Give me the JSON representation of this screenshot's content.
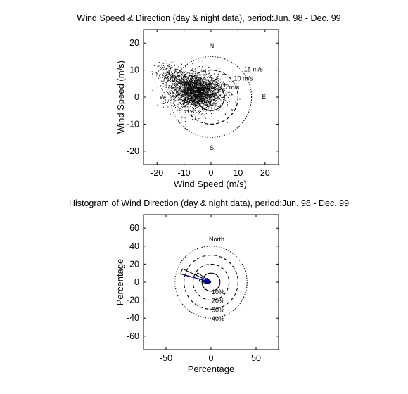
{
  "chart_data": [
    {
      "type": "scatter",
      "title": "Wind Speed & Direction (day & night data),  period:Jun. 98 - Dec. 99",
      "xlabel": "Wind Speed (m/s)",
      "ylabel": "Wind Speed (m/s)",
      "xlim": [
        -25,
        25
      ],
      "ylim": [
        -25,
        25
      ],
      "xticks": [
        "-20",
        "-10",
        "0",
        "10",
        "20"
      ],
      "yticks": [
        "20",
        "10",
        "0",
        "-10",
        "-20"
      ],
      "compass": {
        "n": "N",
        "s": "S",
        "e": "E",
        "w": "W"
      },
      "rings": [
        {
          "r": 5,
          "label": "5 m/s"
        },
        {
          "r": 10,
          "label": "10 m/s"
        },
        {
          "r": 15,
          "label": "15 m/s"
        }
      ],
      "cloud": {
        "center": [
          -5,
          2
        ],
        "spread": [
          4.5,
          3.2
        ],
        "tail_to": [
          -18,
          10
        ],
        "extent_x": [
          -22,
          12
        ],
        "extent_y": [
          -14,
          14
        ]
      },
      "marker_color": "#000000"
    },
    {
      "type": "polar-histogram",
      "title": "Histogram of Wind Direction (day & night data),  period:Jun. 98 - Dec. 99",
      "xlabel": "Percentage",
      "ylabel": "Percentage",
      "xlim": [
        -75,
        75
      ],
      "ylim": [
        -75,
        75
      ],
      "xticks": [
        "-50",
        "0",
        "50"
      ],
      "yticks": [
        "60",
        "40",
        "20",
        "0",
        "-20",
        "-40",
        "-60"
      ],
      "north_label": "North",
      "rings": [
        {
          "r": 10,
          "label": "10%"
        },
        {
          "r": 20,
          "label": "20%"
        },
        {
          "r": 30,
          "label": "30%"
        },
        {
          "r": 40,
          "label": "40%"
        }
      ],
      "sectors": [
        {
          "dir_deg": 290,
          "width_deg": 10,
          "value": 35
        },
        {
          "dir_deg": 300,
          "width_deg": 10,
          "value": 18
        },
        {
          "dir_deg": 280,
          "width_deg": 10,
          "value": 13
        },
        {
          "dir_deg": 270,
          "width_deg": 10,
          "value": 8
        },
        {
          "dir_deg": 260,
          "width_deg": 10,
          "value": 6
        },
        {
          "dir_deg": 310,
          "width_deg": 10,
          "value": 6
        },
        {
          "dir_deg": 250,
          "width_deg": 10,
          "value": 4
        },
        {
          "dir_deg": 320,
          "width_deg": 10,
          "value": 3
        }
      ],
      "mean_vector": {
        "dir_deg": 285,
        "value": 30
      },
      "arrow_color": "#0000cc"
    }
  ]
}
